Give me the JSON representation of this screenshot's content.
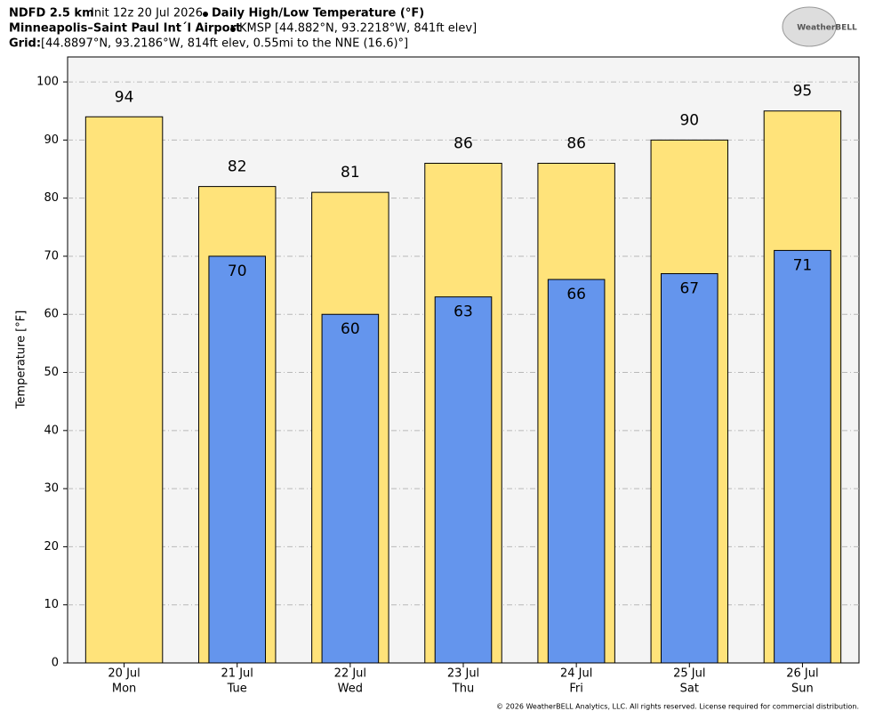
{
  "header": {
    "model": "NDFD 2.5 km",
    "init": "Init 12z 20 Jul 2026",
    "product": "Daily High/Low Temperature (°F)",
    "station": "Minneapolis–Saint Paul Int´l Airport",
    "location": "KMSP [44.882°N, 93.2218°W, 841ft elev]",
    "grid_label": "Grid:",
    "grid_info": "[44.8897°N, 93.2186°W, 814ft elev, 0.55mi to the NNE (16.6)°]",
    "logo": "WeatherBELL"
  },
  "chart_data": {
    "type": "bar",
    "ylabel": "Temperature [°F]",
    "categories": [
      "20 Jul",
      "21 Jul",
      "22 Jul",
      "23 Jul",
      "24 Jul",
      "25 Jul",
      "26 Jul"
    ],
    "weekdays": [
      "Mon",
      "Tue",
      "Wed",
      "Thu",
      "Fri",
      "Sat",
      "Sun"
    ],
    "series": [
      {
        "color": "#ffe37a",
        "values": [
          94,
          82,
          81,
          86,
          86,
          90,
          95
        ]
      },
      {
        "color": "#6495ed",
        "values": [
          null,
          70,
          60,
          63,
          66,
          67,
          71
        ]
      }
    ],
    "ylim": [
      0,
      104.3
    ],
    "yticks": [
      0,
      10,
      20,
      30,
      40,
      50,
      60,
      70,
      80,
      90,
      100
    ],
    "grid": true
  },
  "footer": "© 2026 WeatherBELL Analytics, LLC. All rights reserved. License required for commercial distribution."
}
